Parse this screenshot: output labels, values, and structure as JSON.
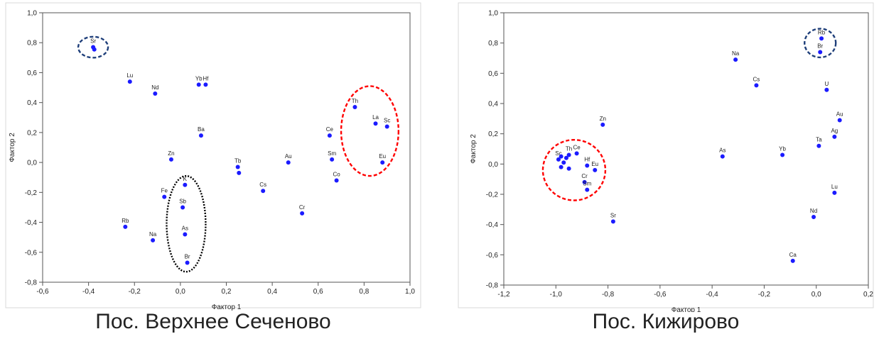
{
  "chart_data": [
    {
      "type": "scatter",
      "caption": "Пос. Верхнее Сеченово",
      "xlabel": "Фактор 1",
      "ylabel": "Фактор 2",
      "xlim": [
        -0.6,
        1.0
      ],
      "ylim": [
        -0.8,
        1.0
      ],
      "xticks": [
        "-0,6",
        "-0,4",
        "-0,2",
        "0,0",
        "0,2",
        "0,4",
        "0,6",
        "0,8",
        "1,0"
      ],
      "yticks": [
        "1,0",
        "0,8",
        "0,6",
        "0,4",
        "0,2",
        "0,0",
        "-0,2",
        "-0,4",
        "-0,6",
        "-0,8"
      ],
      "grid": false,
      "marker_color": "#1b1bff",
      "points": [
        {
          "label": "Sr",
          "x": -0.38,
          "y": 0.77
        },
        {
          "label": "",
          "x": -0.375,
          "y": 0.755
        },
        {
          "label": "Lu",
          "x": -0.22,
          "y": 0.54
        },
        {
          "label": "Nd",
          "x": -0.11,
          "y": 0.46
        },
        {
          "label": "Yb",
          "x": 0.08,
          "y": 0.52
        },
        {
          "label": "Hf",
          "x": 0.11,
          "y": 0.52
        },
        {
          "label": "Ba",
          "x": 0.09,
          "y": 0.18
        },
        {
          "label": "Zn",
          "x": -0.04,
          "y": 0.02
        },
        {
          "label": "Tb",
          "x": 0.25,
          "y": -0.03
        },
        {
          "label": "",
          "x": 0.255,
          "y": -0.07
        },
        {
          "label": "Au",
          "x": 0.47,
          "y": 0.0
        },
        {
          "label": "Cs",
          "x": 0.36,
          "y": -0.19
        },
        {
          "label": "Cr",
          "x": 0.53,
          "y": -0.34
        },
        {
          "label": "Ce",
          "x": 0.65,
          "y": 0.18
        },
        {
          "label": "Sm",
          "x": 0.66,
          "y": 0.02
        },
        {
          "label": "Co",
          "x": 0.68,
          "y": -0.12
        },
        {
          "label": "Th",
          "x": 0.76,
          "y": 0.37
        },
        {
          "label": "La",
          "x": 0.85,
          "y": 0.26
        },
        {
          "label": "Sc",
          "x": 0.9,
          "y": 0.24
        },
        {
          "label": "Eu",
          "x": 0.88,
          "y": 0.0
        },
        {
          "label": "K",
          "x": 0.02,
          "y": -0.15
        },
        {
          "label": "Fe",
          "x": -0.07,
          "y": -0.23
        },
        {
          "label": "Sb",
          "x": 0.01,
          "y": -0.3
        },
        {
          "label": "As",
          "x": 0.02,
          "y": -0.48
        },
        {
          "label": "Br",
          "x": 0.03,
          "y": -0.67
        },
        {
          "label": "Rb",
          "x": -0.24,
          "y": -0.43
        },
        {
          "label": "Na",
          "x": -0.12,
          "y": -0.52
        }
      ],
      "ellipses": [
        {
          "color": "#1f3f7a",
          "cx": -0.38,
          "cy": 0.77,
          "rx": 0.065,
          "ry": 0.07
        },
        {
          "color": "#ff0000",
          "cx": 0.825,
          "cy": 0.21,
          "rx": 0.125,
          "ry": 0.3
        },
        {
          "color": "#000000",
          "cx": 0.025,
          "cy": -0.41,
          "rx": 0.085,
          "ry": 0.32
        }
      ]
    },
    {
      "type": "scatter",
      "caption": "Пос. Кижирово",
      "xlabel": "Фактор 1",
      "ylabel": "Фактор 2",
      "xlim": [
        -1.2,
        0.2
      ],
      "ylim": [
        -0.8,
        1.0
      ],
      "xticks": [
        "-1,2",
        "-1,0",
        "-0,8",
        "-0,6",
        "-0,4",
        "-0,2",
        "0,0",
        "0,2"
      ],
      "yticks": [
        "1,0",
        "0,8",
        "0,6",
        "0,4",
        "0,2",
        "0,0",
        "-0,2",
        "-0,4",
        "-0,6",
        "-0,8"
      ],
      "grid": false,
      "marker_color": "#1b1bff",
      "points": [
        {
          "label": "Na",
          "x": -0.31,
          "y": 0.69
        },
        {
          "label": "Cs",
          "x": -0.23,
          "y": 0.52
        },
        {
          "label": "Rb",
          "x": 0.02,
          "y": 0.83
        },
        {
          "label": "Br",
          "x": 0.015,
          "y": 0.74
        },
        {
          "label": "U",
          "x": 0.04,
          "y": 0.49
        },
        {
          "label": "Au",
          "x": 0.09,
          "y": 0.29
        },
        {
          "label": "Ag",
          "x": 0.07,
          "y": 0.18
        },
        {
          "label": "Ta",
          "x": 0.01,
          "y": 0.12
        },
        {
          "label": "Zn",
          "x": -0.82,
          "y": 0.26
        },
        {
          "label": "As",
          "x": -0.36,
          "y": 0.05
        },
        {
          "label": "Yb",
          "x": -0.13,
          "y": 0.06
        },
        {
          "label": "Lu",
          "x": 0.07,
          "y": -0.19
        },
        {
          "label": "Nd",
          "x": -0.01,
          "y": -0.35
        },
        {
          "label": "Ca",
          "x": -0.09,
          "y": -0.64
        },
        {
          "label": "Sr",
          "x": -0.78,
          "y": -0.38
        },
        {
          "label": "Th",
          "x": -0.95,
          "y": 0.06
        },
        {
          "label": "Ce",
          "x": -0.92,
          "y": 0.07
        },
        {
          "label": "Sc",
          "x": -0.99,
          "y": 0.03
        },
        {
          "label": "",
          "x": -0.98,
          "y": 0.05
        },
        {
          "label": "",
          "x": -0.96,
          "y": 0.04
        },
        {
          "label": "",
          "x": -0.97,
          "y": 0.01
        },
        {
          "label": "",
          "x": -0.98,
          "y": -0.02
        },
        {
          "label": "Hf",
          "x": -0.88,
          "y": -0.01
        },
        {
          "label": "Eu",
          "x": -0.85,
          "y": -0.04
        },
        {
          "label": "",
          "x": -0.95,
          "y": -0.03
        },
        {
          "label": "Cr",
          "x": -0.89,
          "y": -0.12
        },
        {
          "label": "Sm",
          "x": -0.88,
          "y": -0.17
        }
      ],
      "ellipses": [
        {
          "color": "#1f3f7a",
          "cx": 0.015,
          "cy": 0.8,
          "rx": 0.06,
          "ry": 0.095
        },
        {
          "color": "#ff0000",
          "cx": -0.93,
          "cy": -0.04,
          "rx": 0.12,
          "ry": 0.2
        }
      ]
    }
  ]
}
